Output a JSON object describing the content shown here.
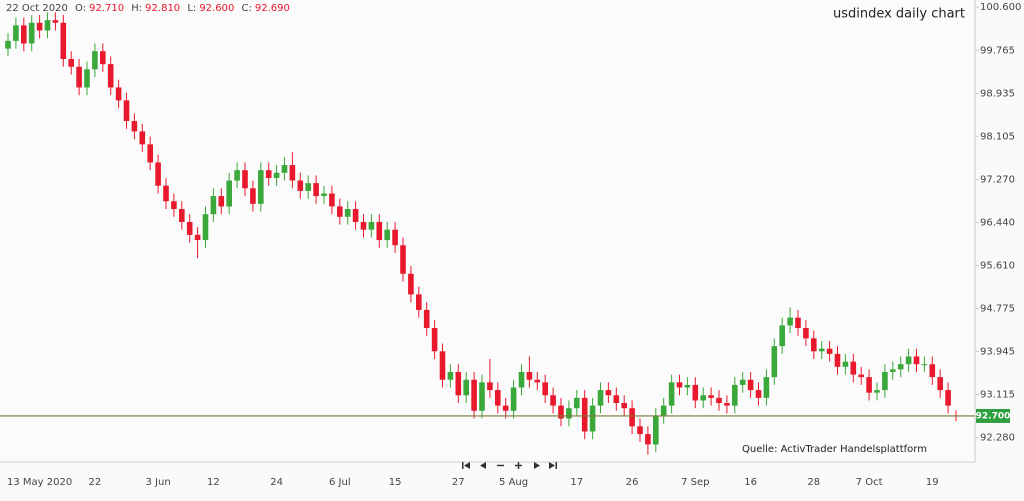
{
  "chart_data": {
    "type": "candlestick",
    "title": "usdindex daily chart",
    "header": {
      "date": "22 Oct 2020",
      "items": [
        {
          "label": "O:",
          "value": "92.710"
        },
        {
          "label": "H:",
          "value": "92.810"
        },
        {
          "label": "L:",
          "value": "92.600"
        },
        {
          "label": "C:",
          "value": "92.690"
        }
      ]
    },
    "annotation": "Quelle: ActivTrader Handelsplattform",
    "up_color": "#3aa83a",
    "down_color": "#e8192c",
    "last_price": {
      "value": 92.7,
      "label": "92.700",
      "color": "#7a7a3a",
      "label_color": "#2e9e3e"
    },
    "ylim": [
      91.81,
      100.74
    ],
    "yticks": [
      {
        "value": 100.6,
        "label": "100.600"
      },
      {
        "value": 99.765,
        "label": "99.765"
      },
      {
        "value": 98.935,
        "label": "98.935"
      },
      {
        "value": 98.105,
        "label": "98.105"
      },
      {
        "value": 97.27,
        "label": "97.270"
      },
      {
        "value": 96.44,
        "label": "96.440"
      },
      {
        "value": 95.61,
        "label": "95.610"
      },
      {
        "value": 94.775,
        "label": "94.775"
      },
      {
        "value": 93.945,
        "label": "93.945"
      },
      {
        "value": 93.115,
        "label": "93.115"
      },
      {
        "value": 92.28,
        "label": "92.280"
      }
    ],
    "categories": [
      null,
      null,
      null,
      null,
      "13 May 2020",
      null,
      null,
      null,
      null,
      null,
      null,
      "22",
      null,
      null,
      null,
      null,
      null,
      null,
      null,
      "3 Jun",
      null,
      null,
      null,
      null,
      null,
      null,
      "12",
      null,
      null,
      null,
      null,
      null,
      null,
      null,
      "24",
      null,
      null,
      null,
      null,
      null,
      null,
      null,
      "6 Jul",
      null,
      null,
      null,
      null,
      null,
      null,
      "15",
      null,
      null,
      null,
      null,
      null,
      null,
      null,
      "27",
      null,
      null,
      null,
      null,
      null,
      null,
      "5 Aug",
      null,
      null,
      null,
      null,
      null,
      null,
      null,
      "17",
      null,
      null,
      null,
      null,
      null,
      null,
      "26",
      null,
      null,
      null,
      null,
      null,
      null,
      null,
      "7 Sep",
      null,
      null,
      null,
      null,
      null,
      null,
      "16",
      null,
      null,
      null,
      null,
      null,
      null,
      null,
      "28",
      null,
      null,
      null,
      null,
      null,
      null,
      "7 Oct",
      null,
      null,
      null,
      null,
      null,
      null,
      null,
      "19",
      null,
      null,
      null
    ],
    "open": [
      99.8,
      99.95,
      100.25,
      99.9,
      100.3,
      100.15,
      100.35,
      100.3,
      99.6,
      99.45,
      99.05,
      99.4,
      99.75,
      99.5,
      99.05,
      98.8,
      98.4,
      98.2,
      97.95,
      97.6,
      97.15,
      96.85,
      96.7,
      96.45,
      96.2,
      96.1,
      96.6,
      96.95,
      96.75,
      97.25,
      97.45,
      97.1,
      96.8,
      97.45,
      97.3,
      97.4,
      97.55,
      97.25,
      97.05,
      97.2,
      96.95,
      97.0,
      96.75,
      96.55,
      96.7,
      96.45,
      96.3,
      96.45,
      96.1,
      96.3,
      96.0,
      95.45,
      95.05,
      94.75,
      94.4,
      93.95,
      93.4,
      93.55,
      93.1,
      93.4,
      92.8,
      93.35,
      93.2,
      92.9,
      92.8,
      93.25,
      93.55,
      93.4,
      93.35,
      93.1,
      92.9,
      92.65,
      92.85,
      93.05,
      92.4,
      92.9,
      93.2,
      93.1,
      92.95,
      92.85,
      92.5,
      92.35,
      92.15,
      92.7,
      92.9,
      93.35,
      93.25,
      93.3,
      93.0,
      93.1,
      93.05,
      92.95,
      92.9,
      93.3,
      93.4,
      93.2,
      93.05,
      93.45,
      94.05,
      94.45,
      94.6,
      94.4,
      94.2,
      93.95,
      94.0,
      93.9,
      93.65,
      93.75,
      93.5,
      93.45,
      93.15,
      93.2,
      93.55,
      93.6,
      93.7,
      93.85,
      93.7,
      93.7,
      93.45,
      93.2,
      92.71
    ],
    "high": [
      100.1,
      100.4,
      100.4,
      100.45,
      100.45,
      100.5,
      100.5,
      100.45,
      99.75,
      99.6,
      99.55,
      99.9,
      99.9,
      99.65,
      99.2,
      98.95,
      98.55,
      98.35,
      98.1,
      97.75,
      97.3,
      97.0,
      96.85,
      96.6,
      96.35,
      96.75,
      97.1,
      97.1,
      97.4,
      97.6,
      97.6,
      97.25,
      97.6,
      97.6,
      97.55,
      97.7,
      97.8,
      97.4,
      97.35,
      97.35,
      97.15,
      97.15,
      96.9,
      96.85,
      96.85,
      96.6,
      96.6,
      96.6,
      96.45,
      96.45,
      96.15,
      95.6,
      95.2,
      94.9,
      94.55,
      94.1,
      93.7,
      93.7,
      93.55,
      93.55,
      93.5,
      93.8,
      93.35,
      93.05,
      93.4,
      93.7,
      93.85,
      93.55,
      93.5,
      93.25,
      93.05,
      93.0,
      93.2,
      93.2,
      93.05,
      93.35,
      93.35,
      93.25,
      93.1,
      93.0,
      92.65,
      92.5,
      92.85,
      93.05,
      93.5,
      93.5,
      93.45,
      93.45,
      93.25,
      93.25,
      93.2,
      93.1,
      93.45,
      93.55,
      93.55,
      93.35,
      93.6,
      94.2,
      94.6,
      94.8,
      94.75,
      94.55,
      94.35,
      94.15,
      94.15,
      94.05,
      93.9,
      93.9,
      93.65,
      93.6,
      93.35,
      93.7,
      93.75,
      93.85,
      94.0,
      94.0,
      93.85,
      93.85,
      93.6,
      93.35,
      92.81
    ],
    "low": [
      99.65,
      99.8,
      99.75,
      99.75,
      100.0,
      100.0,
      100.15,
      99.45,
      99.3,
      98.9,
      98.9,
      99.25,
      99.35,
      98.9,
      98.65,
      98.25,
      98.05,
      97.8,
      97.45,
      97.0,
      96.7,
      96.55,
      96.3,
      96.05,
      95.75,
      95.95,
      96.45,
      96.6,
      96.6,
      97.1,
      96.95,
      96.65,
      96.65,
      97.15,
      97.15,
      97.25,
      97.1,
      96.9,
      96.9,
      96.8,
      96.8,
      96.6,
      96.4,
      96.4,
      96.3,
      96.15,
      96.15,
      95.95,
      95.95,
      95.85,
      95.3,
      94.9,
      94.6,
      94.25,
      93.8,
      93.25,
      93.25,
      92.95,
      92.95,
      92.65,
      92.65,
      93.05,
      92.75,
      92.65,
      92.65,
      93.1,
      93.25,
      93.2,
      92.95,
      92.75,
      92.5,
      92.5,
      92.7,
      92.25,
      92.25,
      92.75,
      92.95,
      92.8,
      92.7,
      92.35,
      92.2,
      91.95,
      92.0,
      92.55,
      92.75,
      93.1,
      93.1,
      92.85,
      92.85,
      92.9,
      92.8,
      92.75,
      92.75,
      93.15,
      93.05,
      92.9,
      92.9,
      93.3,
      93.9,
      94.3,
      94.25,
      94.05,
      93.8,
      93.8,
      93.75,
      93.5,
      93.5,
      93.35,
      93.3,
      93.0,
      93.0,
      93.05,
      93.4,
      93.45,
      93.55,
      93.55,
      93.55,
      93.3,
      93.05,
      92.75,
      92.6
    ],
    "close": [
      99.95,
      100.25,
      99.9,
      100.3,
      100.15,
      100.35,
      100.3,
      99.6,
      99.45,
      99.05,
      99.4,
      99.75,
      99.5,
      99.05,
      98.8,
      98.4,
      98.2,
      97.95,
      97.6,
      97.15,
      96.85,
      96.7,
      96.45,
      96.2,
      96.1,
      96.6,
      96.95,
      96.75,
      97.25,
      97.45,
      97.1,
      96.8,
      97.45,
      97.3,
      97.4,
      97.55,
      97.25,
      97.05,
      97.2,
      96.95,
      97.0,
      96.75,
      96.55,
      96.7,
      96.45,
      96.3,
      96.45,
      96.1,
      96.3,
      96.0,
      95.45,
      95.05,
      94.75,
      94.4,
      93.95,
      93.4,
      93.55,
      93.1,
      93.4,
      92.8,
      93.35,
      93.2,
      92.9,
      92.8,
      93.25,
      93.55,
      93.4,
      93.35,
      93.1,
      92.9,
      92.65,
      92.85,
      93.05,
      92.4,
      92.9,
      93.2,
      93.1,
      92.95,
      92.85,
      92.5,
      92.35,
      92.15,
      92.7,
      92.9,
      93.35,
      93.25,
      93.3,
      93.0,
      93.1,
      93.05,
      92.95,
      92.9,
      93.3,
      93.4,
      93.2,
      93.05,
      93.45,
      94.05,
      94.45,
      94.6,
      94.4,
      94.2,
      93.95,
      94.0,
      93.9,
      93.65,
      93.75,
      93.5,
      93.45,
      93.15,
      93.2,
      93.55,
      93.6,
      93.7,
      93.85,
      93.7,
      93.7,
      93.45,
      93.2,
      92.9,
      92.69
    ]
  }
}
